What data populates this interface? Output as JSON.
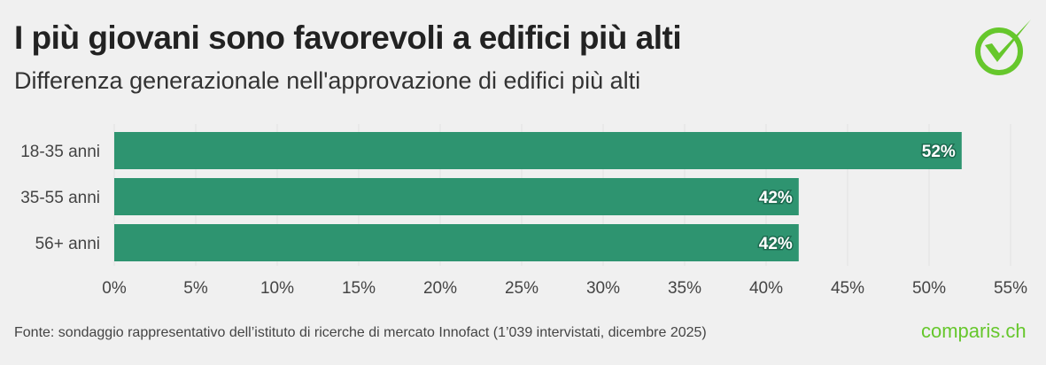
{
  "title": "I più giovani sono favorevoli a edifici più alti",
  "subtitle": "Differenza generazionale nell'approvazione di edifici più alti",
  "source": "Fonte: sondaggio rappresentativo dell’istituto di ricerche di mercato Innofact (1’039 intervistati, dicembre 2025)",
  "brand": "comparis.ch",
  "logo_icon": "check-circle-icon",
  "colors": {
    "bar": "#2e9470",
    "brand": "#66c72c"
  },
  "chart_data": {
    "type": "bar",
    "orientation": "horizontal",
    "categories": [
      "18-35 anni",
      "35-55 anni",
      "56+ anni"
    ],
    "values": [
      52,
      42,
      42
    ],
    "data_labels": [
      "52%",
      "42%",
      "42%"
    ],
    "xlim": [
      0,
      55
    ],
    "xticks": [
      "0%",
      "5%",
      "10%",
      "15%",
      "20%",
      "25%",
      "30%",
      "35%",
      "40%",
      "45%",
      "50%",
      "55%"
    ],
    "grid": true
  }
}
